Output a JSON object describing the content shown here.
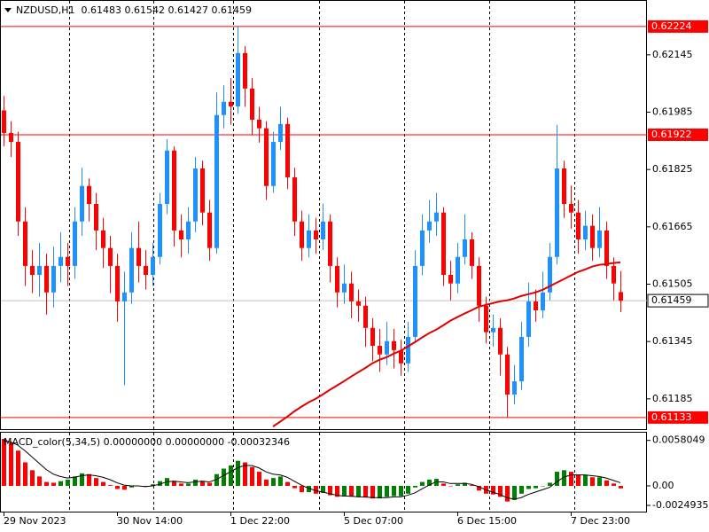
{
  "chart_data": [
    {
      "type": "candlestick",
      "title": "NZDUSD,H1  0.61483 0.61542 0.61427 0.61459",
      "categories": [
        "29 Nov 2023",
        null,
        null,
        null,
        null,
        null,
        null,
        null,
        null,
        null,
        null,
        null,
        null,
        null,
        null,
        null,
        "30 Nov 14:00",
        null,
        null,
        null,
        null,
        null,
        null,
        null,
        null,
        null,
        null,
        null,
        null,
        null,
        null,
        null,
        "1 Dec 22:00",
        null,
        null,
        null,
        null,
        null,
        null,
        null,
        null,
        null,
        null,
        null,
        null,
        null,
        null,
        null,
        "5 Dec 07:00",
        null,
        null,
        null,
        null,
        null,
        null,
        null,
        null,
        null,
        null,
        null,
        null,
        null,
        null,
        null,
        "6 Dec 15:00",
        null,
        null,
        null,
        null,
        null,
        null,
        null,
        null,
        null,
        null,
        null,
        null,
        null,
        null,
        null,
        "7 Dec 23:00",
        null,
        null,
        null,
        null,
        null,
        null,
        null
      ],
      "ohlc": [
        [
          0.6199,
          0.6203,
          0.6189,
          0.61927
        ],
        [
          0.61927,
          0.6196,
          0.6186,
          0.61902
        ],
        [
          0.61902,
          0.6193,
          0.6164,
          0.6168
        ],
        [
          0.6168,
          0.6172,
          0.615,
          0.61556
        ],
        [
          0.61556,
          0.616,
          0.6148,
          0.61531
        ],
        [
          0.61531,
          0.6162,
          0.6147,
          0.61556
        ],
        [
          0.61556,
          0.6159,
          0.6142,
          0.61482
        ],
        [
          0.61482,
          0.6161,
          0.6144,
          0.61556
        ],
        [
          0.61556,
          0.6165,
          0.6151,
          0.61581
        ],
        [
          0.61581,
          0.6162,
          0.615,
          0.61556
        ],
        [
          0.61556,
          0.6172,
          0.6152,
          0.6168
        ],
        [
          0.6168,
          0.6183,
          0.6164,
          0.61779
        ],
        [
          0.61779,
          0.618,
          0.6168,
          0.61729
        ],
        [
          0.61729,
          0.6176,
          0.616,
          0.61655
        ],
        [
          0.61655,
          0.6169,
          0.6155,
          0.61606
        ],
        [
          0.61606,
          0.6164,
          0.6148,
          0.61556
        ],
        [
          0.61556,
          0.6159,
          0.614,
          0.61457
        ],
        [
          0.61457,
          0.6154,
          0.61223,
          0.61482
        ],
        [
          0.61482,
          0.6165,
          0.6145,
          0.61606
        ],
        [
          0.61606,
          0.6168,
          0.6151,
          0.61556
        ],
        [
          0.61556,
          0.616,
          0.6149,
          0.61531
        ],
        [
          0.61531,
          0.6162,
          0.615,
          0.61581
        ],
        [
          0.61581,
          0.6176,
          0.6156,
          0.61729
        ],
        [
          0.61729,
          0.6191,
          0.617,
          0.61878
        ],
        [
          0.61878,
          0.6189,
          0.6161,
          0.61655
        ],
        [
          0.61655,
          0.617,
          0.6158,
          0.6163
        ],
        [
          0.6163,
          0.6172,
          0.6159,
          0.6168
        ],
        [
          0.6168,
          0.6186,
          0.6165,
          0.61828
        ],
        [
          0.61828,
          0.6185,
          0.6167,
          0.61705
        ],
        [
          0.61705,
          0.6174,
          0.6157,
          0.61606
        ],
        [
          0.61606,
          0.6204,
          0.6159,
          0.61977
        ],
        [
          0.61977,
          0.6206,
          0.6194,
          0.62014
        ],
        [
          0.62014,
          0.6208,
          0.6195,
          0.62001
        ],
        [
          0.62001,
          0.62224,
          0.6198,
          0.6215
        ],
        [
          0.6215,
          0.6217,
          0.62,
          0.62051
        ],
        [
          0.62051,
          0.6208,
          0.6192,
          0.61964
        ],
        [
          0.61964,
          0.62,
          0.619,
          0.6194
        ],
        [
          0.6194,
          0.6196,
          0.6174,
          0.61779
        ],
        [
          0.61779,
          0.6193,
          0.6176,
          0.61902
        ],
        [
          0.61902,
          0.62,
          0.6188,
          0.61952
        ],
        [
          0.61952,
          0.6197,
          0.6177,
          0.61803
        ],
        [
          0.61803,
          0.6183,
          0.6164,
          0.6168
        ],
        [
          0.6168,
          0.6171,
          0.6157,
          0.61606
        ],
        [
          0.61606,
          0.617,
          0.6158,
          0.61655
        ],
        [
          0.61655,
          0.6169,
          0.6159,
          0.6163
        ],
        [
          0.6163,
          0.6173,
          0.616,
          0.6168
        ],
        [
          0.6168,
          0.617,
          0.6151,
          0.61556
        ],
        [
          0.61556,
          0.6158,
          0.6144,
          0.61482
        ],
        [
          0.61482,
          0.6156,
          0.6145,
          0.61507
        ],
        [
          0.61507,
          0.6154,
          0.6141,
          0.61457
        ],
        [
          0.61457,
          0.6149,
          0.614,
          0.61445
        ],
        [
          0.61445,
          0.6147,
          0.6133,
          0.61383
        ],
        [
          0.61383,
          0.6141,
          0.6129,
          0.61333
        ],
        [
          0.61333,
          0.6138,
          0.6126,
          0.61309
        ],
        [
          0.61309,
          0.614,
          0.6128,
          0.61346
        ],
        [
          0.61346,
          0.6138,
          0.6127,
          0.61321
        ],
        [
          0.61321,
          0.6135,
          0.6125,
          0.61284
        ],
        [
          0.61284,
          0.614,
          0.6126,
          0.61358
        ],
        [
          0.61358,
          0.616,
          0.6134,
          0.61556
        ],
        [
          0.61556,
          0.617,
          0.6153,
          0.61655
        ],
        [
          0.61655,
          0.6174,
          0.6162,
          0.6168
        ],
        [
          0.6168,
          0.6176,
          0.6164,
          0.61705
        ],
        [
          0.61705,
          0.6172,
          0.615,
          0.61531
        ],
        [
          0.61531,
          0.6157,
          0.6146,
          0.61507
        ],
        [
          0.61507,
          0.6162,
          0.6148,
          0.61581
        ],
        [
          0.61581,
          0.617,
          0.6156,
          0.6163
        ],
        [
          0.6163,
          0.6165,
          0.6152,
          0.61556
        ],
        [
          0.61556,
          0.6158,
          0.614,
          0.61445
        ],
        [
          0.61445,
          0.6147,
          0.6134,
          0.61371
        ],
        [
          0.61371,
          0.6142,
          0.6133,
          0.61383
        ],
        [
          0.61383,
          0.6141,
          0.6125,
          0.61309
        ],
        [
          0.61309,
          0.6133,
          0.61133,
          0.61197
        ],
        [
          0.61197,
          0.6128,
          0.6117,
          0.61234
        ],
        [
          0.61234,
          0.614,
          0.6121,
          0.61358
        ],
        [
          0.61358,
          0.6151,
          0.6133,
          0.61457
        ],
        [
          0.61457,
          0.6149,
          0.614,
          0.61432
        ],
        [
          0.61432,
          0.6154,
          0.6141,
          0.61482
        ],
        [
          0.61482,
          0.6162,
          0.6146,
          0.61581
        ],
        [
          0.61581,
          0.6195,
          0.6156,
          0.61828
        ],
        [
          0.61828,
          0.6185,
          0.6169,
          0.61729
        ],
        [
          0.61729,
          0.6178,
          0.6166,
          0.61705
        ],
        [
          0.61705,
          0.6174,
          0.6159,
          0.6163
        ],
        [
          0.6163,
          0.6171,
          0.616,
          0.61668
        ],
        [
          0.61668,
          0.617,
          0.6157,
          0.61606
        ],
        [
          0.61606,
          0.6172,
          0.6158,
          0.61655
        ],
        [
          0.61655,
          0.6168,
          0.6152,
          0.61556
        ],
        [
          0.61556,
          0.6158,
          0.6146,
          0.61507
        ],
        [
          0.61483,
          0.61542,
          0.61427,
          0.61459
        ]
      ],
      "up_color": "#1e90ff",
      "down_color": "#ff0000",
      "ma": {
        "color": "#e00000",
        "values": [
          null,
          null,
          null,
          null,
          null,
          null,
          null,
          null,
          null,
          null,
          null,
          null,
          null,
          null,
          null,
          null,
          null,
          null,
          null,
          null,
          null,
          null,
          null,
          null,
          null,
          null,
          null,
          null,
          null,
          null,
          null,
          null,
          null,
          null,
          null,
          null,
          null,
          null,
          0.61108,
          0.61121,
          0.61135,
          0.6115,
          0.61163,
          0.61175,
          0.61185,
          0.61197,
          0.6121,
          0.61222,
          0.61234,
          0.61247,
          0.61259,
          0.61271,
          0.61284,
          0.61294,
          0.61301,
          0.61311,
          0.61319,
          0.61331,
          0.61343,
          0.61356,
          0.61368,
          0.61378,
          0.6139,
          0.61403,
          0.61413,
          0.61423,
          0.61432,
          0.61442,
          0.61447,
          0.61452,
          0.61457,
          0.6146,
          0.61465,
          0.61472,
          0.61477,
          0.61482,
          0.61489,
          0.61499,
          0.61509,
          0.61519,
          0.61529,
          0.61539,
          0.61546,
          0.61554,
          0.61559,
          0.61561,
          0.61564,
          0.61566
        ]
      },
      "ylim": [
        0.61103,
        0.62298
      ],
      "yticks": [
        0.62145,
        0.61985,
        0.61825,
        0.61665,
        0.61505,
        0.61345,
        0.61185
      ],
      "levels": [
        0.62224,
        0.61922,
        0.61133
      ],
      "level_color": "#ff0000",
      "bid": 0.61459,
      "bid_color": "#c0c0c0"
    },
    {
      "type": "macd",
      "title": "MACD_color(5,34,5) 0.00000000 0.00000000 -0.00032346",
      "values": [
        0.006,
        0.0055,
        0.0045,
        0.003,
        0.002,
        0.0012,
        0.0005,
        0.0004,
        0.0006,
        0.0008,
        0.0012,
        0.0016,
        0.0015,
        0.001,
        0.0005,
        0.0001,
        -0.0004,
        -0.0005,
        -0.0002,
        0,
        -0.0001,
        0.0002,
        0.0006,
        0.001,
        0.0006,
        0.0003,
        0.0003,
        0.0008,
        0.0006,
        0.0004,
        0.0015,
        0.0022,
        0.0026,
        0.0032,
        0.003,
        0.0024,
        0.0018,
        0.0008,
        0.001,
        0.0012,
        0.0005,
        -0.0003,
        -0.0008,
        -0.0008,
        -0.001,
        -0.0009,
        -0.0012,
        -0.0014,
        -0.0013,
        -0.0014,
        -0.0014,
        -0.0015,
        -0.0016,
        -0.0016,
        -0.0014,
        -0.0013,
        -0.0013,
        -0.001,
        -0.0002,
        0.0005,
        0.0008,
        0.0009,
        0.0003,
        0,
        0.0002,
        0.0004,
        0.0001,
        -0.0006,
        -0.001,
        -0.0011,
        -0.0014,
        -0.002,
        -0.0018,
        -0.001,
        -0.0004,
        -0.0003,
        0,
        0.0004,
        0.0018,
        0.002,
        0.0018,
        0.0014,
        0.0014,
        0.0011,
        0.0011,
        0.0007,
        0.0003,
        -0.00032346
      ],
      "signal": [
        0.0058,
        0.0056,
        0.0052,
        0.0045,
        0.0037,
        0.0029,
        0.0021,
        0.0015,
        0.0012,
        0.001,
        0.0011,
        0.0013,
        0.0014,
        0.0013,
        0.0011,
        0.0008,
        0.0004,
        0.0001,
        0,
        0,
        -0.0001,
        0,
        0.0002,
        0.0005,
        0.0006,
        0.0005,
        0.0004,
        0.0005,
        0.0006,
        0.0005,
        0.0008,
        0.0013,
        0.0018,
        0.0023,
        0.0026,
        0.0026,
        0.0023,
        0.0018,
        0.0015,
        0.0014,
        0.0011,
        0.0006,
        0.0001,
        -0.0003,
        -0.0006,
        -0.0008,
        -0.001,
        -0.0012,
        -0.0013,
        -0.0013,
        -0.0014,
        -0.0014,
        -0.0015,
        -0.0015,
        -0.0015,
        -0.0014,
        -0.0014,
        -0.0012,
        -0.0009,
        -0.0004,
        0.0001,
        0.0005,
        0.0005,
        0.0003,
        0.0003,
        0.0003,
        0.0002,
        -0.0001,
        -0.0005,
        -0.0008,
        -0.0011,
        -0.0015,
        -0.0017,
        -0.0015,
        -0.0011,
        -0.0008,
        -0.0005,
        -0.0002,
        0.0005,
        0.0011,
        0.0014,
        0.0014,
        0.0014,
        0.0013,
        0.0012,
        0.001,
        0.0007,
        0.0004
      ],
      "up_color": "#008000",
      "down_color": "#ff0000",
      "signal_color": "#000000",
      "ylim": [
        -0.0034,
        0.0069
      ],
      "yticks": [
        0.0058049,
        {
          "value": 0,
          "label": "0.00"
        },
        -0.0024935
      ]
    }
  ]
}
